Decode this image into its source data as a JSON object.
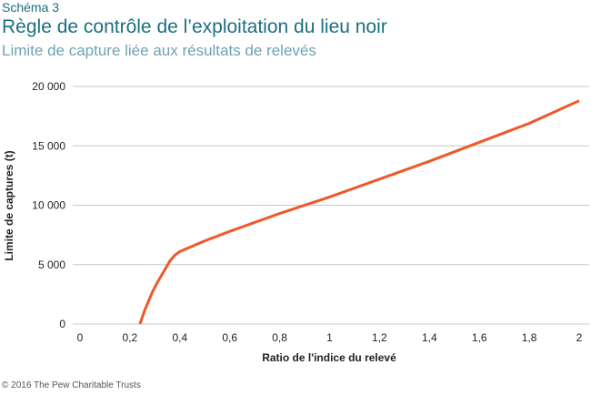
{
  "header": {
    "kicker": "Schéma 3",
    "title": "Règle de contrôle de l’exploitation du lieu noir",
    "subtitle": "Limite de capture liée aux résultats de relevés"
  },
  "footer": {
    "credit": "© 2016 The Pew Charitable Trusts"
  },
  "colors": {
    "line": "#f0582a",
    "grid": "#c8c8c8"
  },
  "chart_data": {
    "type": "line",
    "xlabel": "Ratio de l'indice du relevé",
    "ylabel": "Limite de captures (t)",
    "xlim": [
      0,
      2
    ],
    "ylim": [
      0,
      20000
    ],
    "xticks": [
      "0",
      "0,2",
      "0,4",
      "0,6",
      "0,8",
      "1",
      "1,2",
      "1,4",
      "1,6",
      "1,8",
      "2"
    ],
    "yticks": [
      "0",
      "5 000",
      "10 000",
      "15 000",
      "20 000"
    ],
    "grid": "horizontal",
    "series": [
      {
        "name": "Limite de captures",
        "x": [
          0.24,
          0.26,
          0.29,
          0.31,
          0.335,
          0.36,
          0.38,
          0.4,
          0.5,
          0.6,
          0.8,
          1.0,
          1.2,
          1.4,
          1.6,
          1.8,
          2.0
        ],
        "y": [
          0,
          1200,
          2700,
          3500,
          4400,
          5300,
          5800,
          6100,
          7000,
          7800,
          9300,
          10700,
          12200,
          13700,
          15300,
          16900,
          18800
        ]
      }
    ]
  }
}
